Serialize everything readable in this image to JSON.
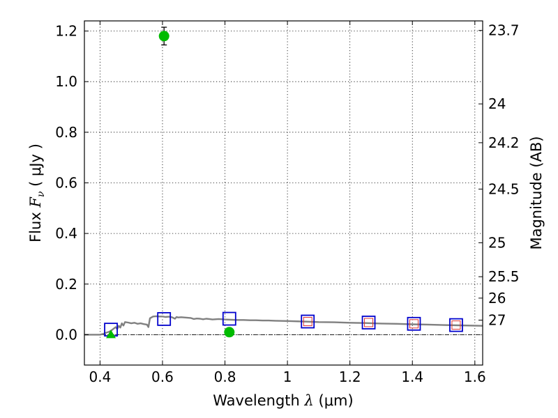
{
  "chart_data": {
    "type": "scatter",
    "xlabel": {
      "pre": "Wavelength  ",
      "sym": "λ",
      "post": " (μm)"
    },
    "ylabel": {
      "pre": "Flux  ",
      "sym": "F",
      "sub": "ν",
      "post": "  ( μJy )"
    },
    "y2label": "Magnitude (AB)",
    "xlim": [
      0.35,
      1.625
    ],
    "ylim": [
      -0.12,
      1.24
    ],
    "grid": true,
    "x_ticks": [
      {
        "value": 0.4,
        "label": "0.4"
      },
      {
        "value": 0.6,
        "label": "0.6"
      },
      {
        "value": 0.8,
        "label": "0.8"
      },
      {
        "value": 1.0,
        "label": "1"
      },
      {
        "value": 1.2,
        "label": "1.2"
      },
      {
        "value": 1.4,
        "label": "1.4"
      },
      {
        "value": 1.6,
        "label": "1.6"
      }
    ],
    "y_ticks": [
      {
        "value": 0.0,
        "label": "0.0"
      },
      {
        "value": 0.2,
        "label": "0.2"
      },
      {
        "value": 0.4,
        "label": "0.4"
      },
      {
        "value": 0.6,
        "label": "0.6"
      },
      {
        "value": 0.8,
        "label": "0.8"
      },
      {
        "value": 1.0,
        "label": "1.0"
      },
      {
        "value": 1.2,
        "label": "1.2"
      }
    ],
    "y2_ticks": [
      {
        "mag": 23.7,
        "label": "23.7"
      },
      {
        "mag": 24.0,
        "label": "24"
      },
      {
        "mag": 24.2,
        "label": "24.2"
      },
      {
        "mag": 24.5,
        "label": "24.5"
      },
      {
        "mag": 25.0,
        "label": "25"
      },
      {
        "mag": 25.5,
        "label": "25.5"
      },
      {
        "mag": 26.0,
        "label": "26"
      },
      {
        "mag": 27.0,
        "label": "27"
      }
    ],
    "zero_line": 0.0,
    "model_spectrum": {
      "color": "#808080",
      "points": [
        [
          0.35,
          0.0
        ],
        [
          0.4,
          0.0
        ],
        [
          0.41,
          0.003
        ],
        [
          0.42,
          0.008
        ],
        [
          0.43,
          0.012
        ],
        [
          0.44,
          0.02
        ],
        [
          0.45,
          0.03
        ],
        [
          0.455,
          0.022
        ],
        [
          0.46,
          0.035
        ],
        [
          0.465,
          0.028
        ],
        [
          0.47,
          0.045
        ],
        [
          0.475,
          0.036
        ],
        [
          0.48,
          0.05
        ],
        [
          0.49,
          0.048
        ],
        [
          0.5,
          0.045
        ],
        [
          0.51,
          0.047
        ],
        [
          0.52,
          0.043
        ],
        [
          0.53,
          0.045
        ],
        [
          0.54,
          0.042
        ],
        [
          0.55,
          0.04
        ],
        [
          0.555,
          0.03
        ],
        [
          0.56,
          0.065
        ],
        [
          0.57,
          0.072
        ],
        [
          0.58,
          0.073
        ],
        [
          0.59,
          0.072
        ],
        [
          0.6,
          0.072
        ],
        [
          0.61,
          0.07
        ],
        [
          0.62,
          0.071
        ],
        [
          0.63,
          0.069
        ],
        [
          0.64,
          0.063
        ],
        [
          0.645,
          0.07
        ],
        [
          0.65,
          0.068
        ],
        [
          0.66,
          0.069
        ],
        [
          0.67,
          0.068
        ],
        [
          0.68,
          0.067
        ],
        [
          0.69,
          0.066
        ],
        [
          0.7,
          0.062
        ],
        [
          0.71,
          0.064
        ],
        [
          0.72,
          0.063
        ],
        [
          0.73,
          0.061
        ],
        [
          0.74,
          0.063
        ],
        [
          0.75,
          0.062
        ],
        [
          0.76,
          0.06
        ],
        [
          0.78,
          0.062
        ],
        [
          0.8,
          0.06
        ],
        [
          0.82,
          0.059
        ],
        [
          0.84,
          0.058
        ],
        [
          0.86,
          0.058
        ],
        [
          0.88,
          0.057
        ],
        [
          0.9,
          0.057
        ],
        [
          0.92,
          0.056
        ],
        [
          0.94,
          0.056
        ],
        [
          0.96,
          0.055
        ],
        [
          1.0,
          0.054
        ],
        [
          1.05,
          0.052
        ],
        [
          1.1,
          0.05
        ],
        [
          1.15,
          0.049
        ],
        [
          1.2,
          0.047
        ],
        [
          1.25,
          0.046
        ],
        [
          1.3,
          0.044
        ],
        [
          1.35,
          0.043
        ],
        [
          1.4,
          0.041
        ],
        [
          1.45,
          0.04
        ],
        [
          1.5,
          0.038
        ],
        [
          1.55,
          0.037
        ],
        [
          1.625,
          0.035
        ]
      ]
    },
    "model_photometry": {
      "outer_color": "#0000cc",
      "inner_color": "#dd3333",
      "points": [
        {
          "x": 0.435,
          "y": 0.02,
          "inner": false
        },
        {
          "x": 0.605,
          "y": 0.062,
          "inner": false
        },
        {
          "x": 0.814,
          "y": 0.063,
          "inner": false
        },
        {
          "x": 1.065,
          "y": 0.052,
          "inner": true
        },
        {
          "x": 1.26,
          "y": 0.048,
          "inner": true
        },
        {
          "x": 1.405,
          "y": 0.043,
          "inner": true
        },
        {
          "x": 1.54,
          "y": 0.038,
          "inner": true
        }
      ]
    },
    "observed": {
      "color": "#00bb00",
      "points": [
        {
          "x": 0.605,
          "y": 1.18,
          "err": 0.035
        },
        {
          "x": 0.814,
          "y": 0.01,
          "err": 0.012
        }
      ],
      "upper_limits": [
        {
          "x": 0.435,
          "y": 0.003,
          "err": 0.008
        }
      ]
    }
  }
}
